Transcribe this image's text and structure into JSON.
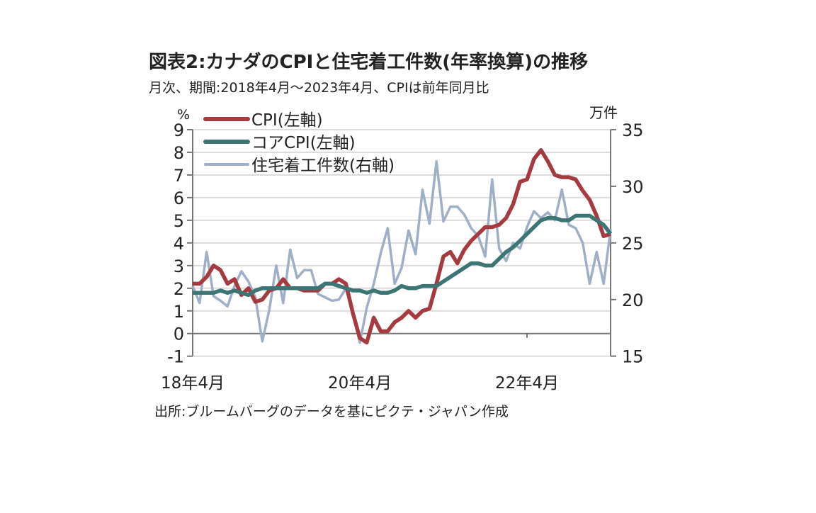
{
  "title": "図表2:カナダのCPIと住宅着工件数(年率換算)の推移",
  "subtitle": "月次、期間:2018年4月～2023年4月、CPIは前年同月比",
  "source": "出所:ブルームバーグのデータを基にピクテ・ジャパン作成",
  "chart_data": {
    "type": "line",
    "title": "図表2:カナダのCPIと住宅着工件数(年率換算)の推移",
    "x_start": "2018-04",
    "x_end": "2023-04",
    "x_frequency": "monthly",
    "x_tick_labels": [
      "18年4月",
      "20年4月",
      "22年4月"
    ],
    "y_left": {
      "unit": "%",
      "range": [
        -1,
        9
      ],
      "ticks": [
        -1,
        0,
        1,
        2,
        3,
        4,
        5,
        6,
        7,
        8,
        9
      ]
    },
    "y_right": {
      "unit": "万件",
      "range": [
        15,
        35
      ],
      "ticks": [
        15,
        20,
        25,
        30,
        35
      ]
    },
    "grid": true,
    "legend": "top-left",
    "series": [
      {
        "name": "CPI(左軸)",
        "axis": "left",
        "color": "#a53a40",
        "values": [
          2.2,
          2.2,
          2.5,
          3.0,
          2.8,
          2.2,
          2.4,
          1.7,
          2.0,
          1.4,
          1.5,
          1.9,
          2.0,
          2.4,
          2.0,
          2.0,
          1.9,
          1.9,
          1.9,
          2.2,
          2.2,
          2.4,
          2.2,
          0.9,
          -0.2,
          -0.4,
          0.7,
          0.1,
          0.1,
          0.5,
          0.7,
          1.0,
          0.7,
          1.0,
          1.1,
          2.2,
          3.4,
          3.6,
          3.1,
          3.7,
          4.1,
          4.4,
          4.7,
          4.7,
          4.8,
          5.1,
          5.7,
          6.7,
          6.8,
          7.7,
          8.1,
          7.6,
          7.0,
          6.9,
          6.9,
          6.8,
          6.3,
          5.9,
          5.2,
          4.3,
          4.4
        ]
      },
      {
        "name": "コアCPI(左軸)",
        "axis": "left",
        "color": "#3d7474",
        "values": [
          1.8,
          1.8,
          1.8,
          1.8,
          1.9,
          1.8,
          1.9,
          1.8,
          1.7,
          1.9,
          2.0,
          2.0,
          2.0,
          2.0,
          2.0,
          2.0,
          2.0,
          2.0,
          2.0,
          2.2,
          2.2,
          2.1,
          2.0,
          1.9,
          1.9,
          1.8,
          1.9,
          1.8,
          1.8,
          1.9,
          2.1,
          2.0,
          2.0,
          2.1,
          2.1,
          2.1,
          2.3,
          2.5,
          2.7,
          2.9,
          3.1,
          3.1,
          3.0,
          3.0,
          3.3,
          3.6,
          3.8,
          4.1,
          4.4,
          4.7,
          5.0,
          5.1,
          5.1,
          5.0,
          5.0,
          5.2,
          5.2,
          5.2,
          5.0,
          4.8,
          4.4
        ]
      },
      {
        "name": "住宅着工件数(右軸)",
        "axis": "right",
        "color": "#9fb0c6",
        "values": [
          21.2,
          19.7,
          24.2,
          20.3,
          19.9,
          19.4,
          21.2,
          22.5,
          21.6,
          20.2,
          16.3,
          19.1,
          23.0,
          19.7,
          24.4,
          21.9,
          22.6,
          22.6,
          20.5,
          20.2,
          19.9,
          20.0,
          21.0,
          18.7,
          16.2,
          19.3,
          21.4,
          24.1,
          26.3,
          21.4,
          22.8,
          26.1,
          24.0,
          29.7,
          26.7,
          32.2,
          26.9,
          28.2,
          28.2,
          27.5,
          26.3,
          25.6,
          23.8,
          30.6,
          24.5,
          23.4,
          25.0,
          24.5,
          26.4,
          27.8,
          27.2,
          27.7,
          27.0,
          29.7,
          26.6,
          26.3,
          25.0,
          21.4,
          24.2,
          21.4,
          26.2
        ]
      }
    ]
  }
}
